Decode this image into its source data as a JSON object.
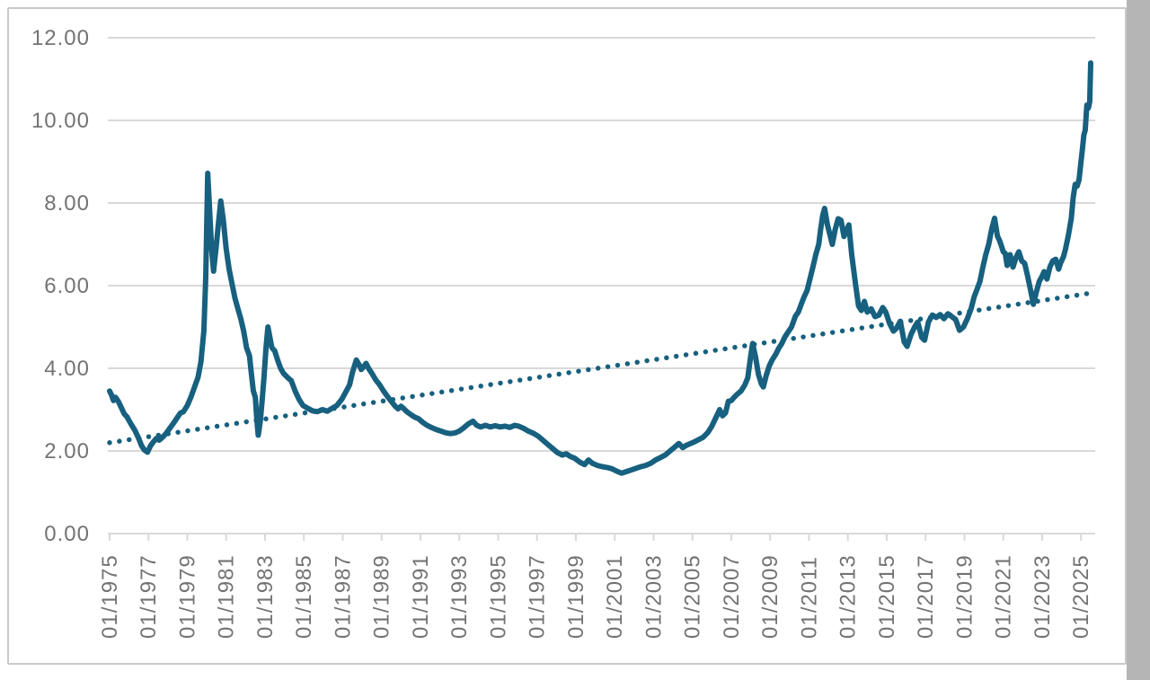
{
  "window": {
    "title": "",
    "background": "#ffffff",
    "frame_border_color": "#c9c9c9",
    "right_gutter_color": "#b5b5b5"
  },
  "chart_data": {
    "type": "line",
    "title": "",
    "xlabel": "",
    "ylabel": "",
    "legend": "none",
    "grid": "horizontal",
    "y_axis": {
      "min": 0,
      "max": 12,
      "step": 2
    },
    "x_axis": {
      "start": 1975.0,
      "end": 2025.5,
      "tick_interval_years": 2
    },
    "y_tick_labels": [
      "0.00",
      "2.00",
      "4.00",
      "6.00",
      "8.00",
      "10.00",
      "12.00"
    ],
    "x_tick_labels": [
      "01/1975",
      "01/1977",
      "01/1979",
      "01/1981",
      "01/1983",
      "01/1985",
      "01/1987",
      "01/1989",
      "01/1991",
      "01/1993",
      "01/1995",
      "01/1997",
      "01/1999",
      "01/2001",
      "01/2003",
      "01/2005",
      "01/2007",
      "01/2009",
      "01/2011",
      "01/2013",
      "01/2015",
      "01/2017",
      "01/2019",
      "01/2021",
      "01/2023",
      "01/2025"
    ],
    "colors": {
      "series": "#17607f",
      "trend": "#17607f",
      "grid": "#d9d9d9",
      "axis": "#d9d9d9",
      "tick_label": "#737373"
    },
    "series": [
      {
        "name": "monthly-value",
        "style": "solid",
        "points": [
          [
            1975.0,
            3.45
          ],
          [
            1975.1,
            3.35
          ],
          [
            1975.2,
            3.22
          ],
          [
            1975.3,
            3.3
          ],
          [
            1975.45,
            3.2
          ],
          [
            1975.6,
            3.05
          ],
          [
            1975.75,
            2.9
          ],
          [
            1975.9,
            2.82
          ],
          [
            1976.1,
            2.65
          ],
          [
            1976.3,
            2.5
          ],
          [
            1976.5,
            2.3
          ],
          [
            1976.65,
            2.12
          ],
          [
            1976.8,
            2.02
          ],
          [
            1976.95,
            1.97
          ],
          [
            1977.1,
            2.12
          ],
          [
            1977.25,
            2.22
          ],
          [
            1977.4,
            2.3
          ],
          [
            1977.55,
            2.26
          ],
          [
            1977.7,
            2.32
          ],
          [
            1977.9,
            2.42
          ],
          [
            1978.1,
            2.55
          ],
          [
            1978.3,
            2.68
          ],
          [
            1978.5,
            2.82
          ],
          [
            1978.65,
            2.92
          ],
          [
            1978.8,
            2.95
          ],
          [
            1979.0,
            3.1
          ],
          [
            1979.2,
            3.32
          ],
          [
            1979.4,
            3.58
          ],
          [
            1979.55,
            3.78
          ],
          [
            1979.7,
            4.15
          ],
          [
            1979.85,
            4.9
          ],
          [
            1979.95,
            6.2
          ],
          [
            1980.05,
            8.72
          ],
          [
            1980.15,
            7.8
          ],
          [
            1980.25,
            6.9
          ],
          [
            1980.35,
            6.35
          ],
          [
            1980.5,
            7.0
          ],
          [
            1980.6,
            7.5
          ],
          [
            1980.72,
            8.05
          ],
          [
            1980.85,
            7.6
          ],
          [
            1981.0,
            6.9
          ],
          [
            1981.15,
            6.4
          ],
          [
            1981.3,
            6.05
          ],
          [
            1981.45,
            5.7
          ],
          [
            1981.6,
            5.45
          ],
          [
            1981.75,
            5.2
          ],
          [
            1981.9,
            4.9
          ],
          [
            1982.05,
            4.5
          ],
          [
            1982.2,
            4.3
          ],
          [
            1982.3,
            3.85
          ],
          [
            1982.4,
            3.45
          ],
          [
            1982.5,
            3.3
          ],
          [
            1982.58,
            2.75
          ],
          [
            1982.65,
            2.38
          ],
          [
            1982.75,
            2.7
          ],
          [
            1982.85,
            3.2
          ],
          [
            1982.95,
            3.8
          ],
          [
            1983.05,
            4.5
          ],
          [
            1983.15,
            5.0
          ],
          [
            1983.25,
            4.75
          ],
          [
            1983.35,
            4.5
          ],
          [
            1983.5,
            4.42
          ],
          [
            1983.65,
            4.2
          ],
          [
            1983.8,
            4.0
          ],
          [
            1983.95,
            3.88
          ],
          [
            1984.15,
            3.78
          ],
          [
            1984.35,
            3.7
          ],
          [
            1984.55,
            3.45
          ],
          [
            1984.75,
            3.25
          ],
          [
            1984.95,
            3.1
          ],
          [
            1985.2,
            3.03
          ],
          [
            1985.45,
            2.97
          ],
          [
            1985.7,
            2.95
          ],
          [
            1985.95,
            3.0
          ],
          [
            1986.2,
            2.96
          ],
          [
            1986.45,
            3.03
          ],
          [
            1986.7,
            3.1
          ],
          [
            1986.95,
            3.25
          ],
          [
            1987.15,
            3.42
          ],
          [
            1987.35,
            3.6
          ],
          [
            1987.5,
            3.9
          ],
          [
            1987.7,
            4.2
          ],
          [
            1987.85,
            4.08
          ],
          [
            1987.95,
            3.97
          ],
          [
            1988.1,
            4.05
          ],
          [
            1988.2,
            4.12
          ],
          [
            1988.35,
            3.98
          ],
          [
            1988.5,
            3.88
          ],
          [
            1988.7,
            3.72
          ],
          [
            1988.9,
            3.6
          ],
          [
            1989.1,
            3.45
          ],
          [
            1989.3,
            3.32
          ],
          [
            1989.5,
            3.2
          ],
          [
            1989.7,
            3.08
          ],
          [
            1989.85,
            3.02
          ],
          [
            1990.0,
            3.08
          ],
          [
            1990.15,
            3.02
          ],
          [
            1990.3,
            2.95
          ],
          [
            1990.5,
            2.88
          ],
          [
            1990.7,
            2.82
          ],
          [
            1990.9,
            2.78
          ],
          [
            1991.1,
            2.7
          ],
          [
            1991.3,
            2.63
          ],
          [
            1991.55,
            2.57
          ],
          [
            1991.8,
            2.52
          ],
          [
            1992.05,
            2.48
          ],
          [
            1992.3,
            2.44
          ],
          [
            1992.55,
            2.42
          ],
          [
            1992.8,
            2.44
          ],
          [
            1993.0,
            2.48
          ],
          [
            1993.2,
            2.55
          ],
          [
            1993.45,
            2.65
          ],
          [
            1993.7,
            2.72
          ],
          [
            1993.9,
            2.62
          ],
          [
            1994.1,
            2.58
          ],
          [
            1994.35,
            2.62
          ],
          [
            1994.6,
            2.58
          ],
          [
            1994.85,
            2.61
          ],
          [
            1995.1,
            2.58
          ],
          [
            1995.35,
            2.6
          ],
          [
            1995.6,
            2.57
          ],
          [
            1995.85,
            2.62
          ],
          [
            1996.05,
            2.6
          ],
          [
            1996.3,
            2.55
          ],
          [
            1996.55,
            2.48
          ],
          [
            1996.8,
            2.43
          ],
          [
            1997.05,
            2.36
          ],
          [
            1997.3,
            2.26
          ],
          [
            1997.55,
            2.16
          ],
          [
            1997.8,
            2.06
          ],
          [
            1998.05,
            1.96
          ],
          [
            1998.3,
            1.9
          ],
          [
            1998.5,
            1.93
          ],
          [
            1998.7,
            1.87
          ],
          [
            1998.95,
            1.82
          ],
          [
            1999.2,
            1.73
          ],
          [
            1999.45,
            1.67
          ],
          [
            1999.65,
            1.78
          ],
          [
            1999.85,
            1.7
          ],
          [
            2000.1,
            1.65
          ],
          [
            2000.35,
            1.62
          ],
          [
            2000.6,
            1.6
          ],
          [
            2000.85,
            1.57
          ],
          [
            2001.1,
            1.51
          ],
          [
            2001.35,
            1.46
          ],
          [
            2001.6,
            1.5
          ],
          [
            2001.85,
            1.54
          ],
          [
            2002.1,
            1.58
          ],
          [
            2002.35,
            1.62
          ],
          [
            2002.6,
            1.65
          ],
          [
            2002.85,
            1.7
          ],
          [
            2003.1,
            1.78
          ],
          [
            2003.35,
            1.84
          ],
          [
            2003.6,
            1.9
          ],
          [
            2003.85,
            2.0
          ],
          [
            2004.1,
            2.1
          ],
          [
            2004.3,
            2.18
          ],
          [
            2004.5,
            2.08
          ],
          [
            2004.7,
            2.14
          ],
          [
            2004.9,
            2.18
          ],
          [
            2005.1,
            2.22
          ],
          [
            2005.3,
            2.27
          ],
          [
            2005.55,
            2.33
          ],
          [
            2005.8,
            2.45
          ],
          [
            2006.0,
            2.6
          ],
          [
            2006.2,
            2.8
          ],
          [
            2006.4,
            3.0
          ],
          [
            2006.55,
            2.85
          ],
          [
            2006.7,
            2.92
          ],
          [
            2006.85,
            3.2
          ],
          [
            2007.0,
            3.22
          ],
          [
            2007.15,
            3.3
          ],
          [
            2007.3,
            3.37
          ],
          [
            2007.5,
            3.45
          ],
          [
            2007.7,
            3.6
          ],
          [
            2007.85,
            3.77
          ],
          [
            2008.0,
            4.3
          ],
          [
            2008.1,
            4.6
          ],
          [
            2008.25,
            4.27
          ],
          [
            2008.4,
            3.85
          ],
          [
            2008.55,
            3.62
          ],
          [
            2008.65,
            3.55
          ],
          [
            2008.8,
            3.83
          ],
          [
            2008.95,
            4.05
          ],
          [
            2009.1,
            4.2
          ],
          [
            2009.3,
            4.35
          ],
          [
            2009.45,
            4.49
          ],
          [
            2009.6,
            4.6
          ],
          [
            2009.75,
            4.75
          ],
          [
            2009.9,
            4.86
          ],
          [
            2010.1,
            5.0
          ],
          [
            2010.3,
            5.26
          ],
          [
            2010.45,
            5.36
          ],
          [
            2010.6,
            5.55
          ],
          [
            2010.75,
            5.73
          ],
          [
            2010.9,
            5.88
          ],
          [
            2011.05,
            6.16
          ],
          [
            2011.2,
            6.45
          ],
          [
            2011.35,
            6.75
          ],
          [
            2011.5,
            7.0
          ],
          [
            2011.6,
            7.36
          ],
          [
            2011.7,
            7.69
          ],
          [
            2011.8,
            7.87
          ],
          [
            2011.95,
            7.47
          ],
          [
            2012.1,
            7.19
          ],
          [
            2012.2,
            7.0
          ],
          [
            2012.35,
            7.36
          ],
          [
            2012.5,
            7.62
          ],
          [
            2012.65,
            7.58
          ],
          [
            2012.8,
            7.19
          ],
          [
            2012.95,
            7.36
          ],
          [
            2013.05,
            7.47
          ],
          [
            2013.2,
            6.75
          ],
          [
            2013.3,
            6.38
          ],
          [
            2013.4,
            6.01
          ],
          [
            2013.55,
            5.51
          ],
          [
            2013.7,
            5.4
          ],
          [
            2013.85,
            5.62
          ],
          [
            2014.0,
            5.36
          ],
          [
            2014.2,
            5.44
          ],
          [
            2014.4,
            5.25
          ],
          [
            2014.6,
            5.29
          ],
          [
            2014.8,
            5.47
          ],
          [
            2014.95,
            5.36
          ],
          [
            2015.15,
            5.08
          ],
          [
            2015.35,
            4.9
          ],
          [
            2015.5,
            4.97
          ],
          [
            2015.7,
            5.14
          ],
          [
            2015.9,
            4.64
          ],
          [
            2016.05,
            4.53
          ],
          [
            2016.25,
            4.82
          ],
          [
            2016.45,
            5.01
          ],
          [
            2016.6,
            5.12
          ],
          [
            2016.8,
            4.75
          ],
          [
            2016.95,
            4.68
          ],
          [
            2017.15,
            5.12
          ],
          [
            2017.35,
            5.29
          ],
          [
            2017.55,
            5.23
          ],
          [
            2017.75,
            5.3
          ],
          [
            2017.95,
            5.2
          ],
          [
            2018.15,
            5.32
          ],
          [
            2018.35,
            5.25
          ],
          [
            2018.55,
            5.18
          ],
          [
            2018.75,
            4.92
          ],
          [
            2018.95,
            5.0
          ],
          [
            2019.15,
            5.2
          ],
          [
            2019.35,
            5.45
          ],
          [
            2019.5,
            5.73
          ],
          [
            2019.65,
            5.91
          ],
          [
            2019.8,
            6.1
          ],
          [
            2019.95,
            6.45
          ],
          [
            2020.1,
            6.75
          ],
          [
            2020.25,
            7.0
          ],
          [
            2020.4,
            7.36
          ],
          [
            2020.55,
            7.63
          ],
          [
            2020.7,
            7.2
          ],
          [
            2020.8,
            7.1
          ],
          [
            2020.9,
            6.97
          ],
          [
            2021.0,
            6.82
          ],
          [
            2021.1,
            6.78
          ],
          [
            2021.2,
            6.49
          ],
          [
            2021.35,
            6.75
          ],
          [
            2021.5,
            6.45
          ],
          [
            2021.65,
            6.67
          ],
          [
            2021.8,
            6.82
          ],
          [
            2021.95,
            6.6
          ],
          [
            2022.1,
            6.54
          ],
          [
            2022.25,
            6.24
          ],
          [
            2022.4,
            5.9
          ],
          [
            2022.55,
            5.55
          ],
          [
            2022.7,
            5.85
          ],
          [
            2022.85,
            6.1
          ],
          [
            2023.0,
            6.23
          ],
          [
            2023.1,
            6.34
          ],
          [
            2023.25,
            6.16
          ],
          [
            2023.4,
            6.45
          ],
          [
            2023.55,
            6.6
          ],
          [
            2023.7,
            6.64
          ],
          [
            2023.85,
            6.4
          ],
          [
            2023.95,
            6.55
          ],
          [
            2024.1,
            6.7
          ],
          [
            2024.2,
            6.88
          ],
          [
            2024.35,
            7.21
          ],
          [
            2024.5,
            7.63
          ],
          [
            2024.6,
            8.13
          ],
          [
            2024.7,
            8.45
          ],
          [
            2024.8,
            8.41
          ],
          [
            2024.9,
            8.56
          ],
          [
            2025.0,
            9.0
          ],
          [
            2025.08,
            9.33
          ],
          [
            2025.15,
            9.65
          ],
          [
            2025.22,
            9.76
          ],
          [
            2025.3,
            10.37
          ],
          [
            2025.38,
            10.3
          ],
          [
            2025.45,
            10.45
          ],
          [
            2025.5,
            11.39
          ]
        ]
      },
      {
        "name": "linear-trend",
        "style": "dotted",
        "points": [
          [
            1975.0,
            2.2
          ],
          [
            2025.5,
            5.82
          ]
        ]
      }
    ]
  }
}
